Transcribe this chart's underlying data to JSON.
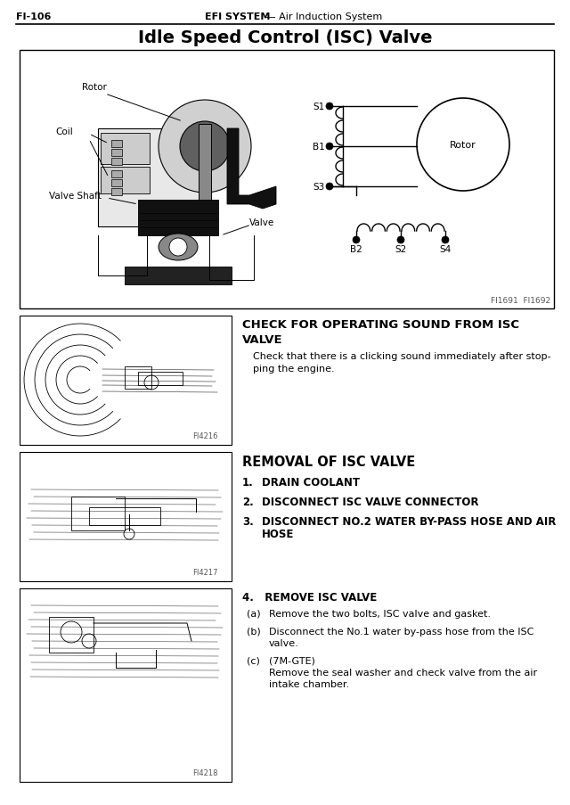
{
  "page_num": "FI-106",
  "header_center": "EFI SYSTEM — Air Induction System",
  "header_bold": "EFI SYSTEM",
  "header_regular": " — Air Induction System",
  "main_title": "Idle Speed Control (ISC) Valve",
  "bg_color": "#ffffff",
  "fig_width": 6.4,
  "fig_height": 9.04,
  "section1_title_line1": "CHECK FOR OPERATING SOUND FROM ISC",
  "section1_title_line2": "VALVE",
  "section1_indent": "    Check that there is a clicking sound immediately after stop-\n    ping the engine.",
  "section1_fignum": "FI4216",
  "section2_title": "REMOVAL OF ISC VALVE",
  "section2_items": [
    {
      "num": "1.",
      "text": "DRAIN COOLANT"
    },
    {
      "num": "2.",
      "text": "DISCONNECT ISC VALVE CONNECTOR"
    },
    {
      "num": "3.",
      "text": "DISCONNECT NO.2 WATER BY-PASS HOSE AND AIR\n         HOSE"
    }
  ],
  "section2_fignum": "FI4217",
  "section3_num": "4.",
  "section3_title": "REMOVE ISC VALVE",
  "section3_items": [
    {
      "label": "(a)",
      "text": "Remove the two bolts, ISC valve and gasket."
    },
    {
      "label": "(b)",
      "text": "Disconnect the No.1 water by-pass hose from the ISC\n          valve."
    },
    {
      "label": "(c)",
      "text": "(7M-GTE)\n          Remove the seal washer and check valve from the air\n          intake chamber."
    }
  ],
  "section3_fignum": "FI4218",
  "diagram_fignum": "FI1691  FI1692"
}
